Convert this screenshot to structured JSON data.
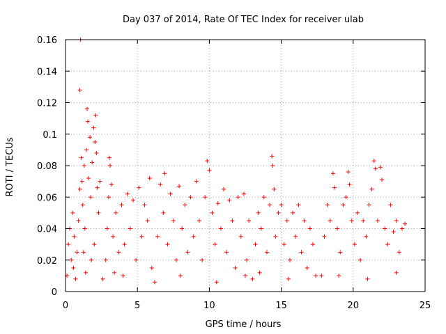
{
  "chart_data": {
    "type": "scatter",
    "title": "Day 037 of 2014, Rate Of TEC Index for receiver ulab",
    "xlabel": "GPS time / hours",
    "ylabel": "ROTI / TECUs",
    "xlim": [
      0,
      25
    ],
    "ylim": [
      0,
      0.16
    ],
    "x_ticks": [
      0,
      5,
      10,
      15,
      20,
      25
    ],
    "x_tick_labels": [
      "0",
      "5",
      "10",
      "15",
      "20",
      "25"
    ],
    "y_ticks": [
      0,
      0.02,
      0.04,
      0.06,
      0.08,
      0.1,
      0.12,
      0.14,
      0.16
    ],
    "y_tick_labels": [
      "0",
      "0.02",
      "0.04",
      "0.06",
      "0.08",
      "0.1",
      "0.12",
      "0.14",
      "0.16"
    ],
    "grid": true,
    "marker": "+",
    "marker_color": "#ff0000",
    "series": [
      {
        "name": "ROTI",
        "points": [
          [
            0.1,
            0.01
          ],
          [
            0.2,
            0.03
          ],
          [
            0.3,
            0.04
          ],
          [
            0.4,
            0.02
          ],
          [
            0.5,
            0.05
          ],
          [
            0.55,
            0.015
          ],
          [
            0.6,
            0.035
          ],
          [
            0.7,
            0.008
          ],
          [
            0.8,
            0.025
          ],
          [
            0.9,
            0.045
          ],
          [
            1.0,
            0.065
          ],
          [
            1.05,
            0.16
          ],
          [
            1.0,
            0.128
          ],
          [
            1.1,
            0.085
          ],
          [
            1.15,
            0.07
          ],
          [
            1.2,
            0.055
          ],
          [
            1.3,
            0.08
          ],
          [
            1.35,
            0.04
          ],
          [
            1.45,
            0.09
          ],
          [
            1.5,
            0.116
          ],
          [
            1.55,
            0.108
          ],
          [
            1.6,
            0.072
          ],
          [
            1.7,
            0.098
          ],
          [
            1.75,
            0.06
          ],
          [
            1.85,
            0.082
          ],
          [
            1.95,
            0.104
          ],
          [
            2.05,
            0.095
          ],
          [
            2.1,
            0.112
          ],
          [
            2.15,
            0.088
          ],
          [
            2.2,
            0.066
          ],
          [
            2.3,
            0.05
          ],
          [
            2.4,
            0.07
          ],
          [
            2.0,
            0.03
          ],
          [
            1.8,
            0.02
          ],
          [
            1.4,
            0.012
          ],
          [
            1.25,
            0.025
          ],
          [
            2.6,
            0.008
          ],
          [
            2.8,
            0.02
          ],
          [
            2.9,
            0.04
          ],
          [
            3.0,
            0.06
          ],
          [
            3.05,
            0.085
          ],
          [
            3.1,
            0.08
          ],
          [
            3.2,
            0.068
          ],
          [
            3.3,
            0.035
          ],
          [
            3.5,
            0.05
          ],
          [
            3.7,
            0.025
          ],
          [
            3.9,
            0.055
          ],
          [
            4.1,
            0.03
          ],
          [
            4.3,
            0.062
          ],
          [
            4.5,
            0.04
          ],
          [
            4.7,
            0.058
          ],
          [
            4.9,
            0.02
          ],
          [
            5.1,
            0.066
          ],
          [
            5.3,
            0.035
          ],
          [
            5.5,
            0.055
          ],
          [
            5.7,
            0.045
          ],
          [
            5.85,
            0.072
          ],
          [
            6.0,
            0.015
          ],
          [
            4.0,
            0.01
          ],
          [
            3.4,
            0.012
          ],
          [
            6.2,
            0.006
          ],
          [
            6.4,
            0.035
          ],
          [
            6.6,
            0.068
          ],
          [
            6.8,
            0.05
          ],
          [
            6.9,
            0.075
          ],
          [
            7.1,
            0.03
          ],
          [
            7.3,
            0.062
          ],
          [
            7.5,
            0.045
          ],
          [
            7.7,
            0.02
          ],
          [
            7.9,
            0.067
          ],
          [
            8.1,
            0.04
          ],
          [
            8.3,
            0.055
          ],
          [
            8.5,
            0.025
          ],
          [
            8.7,
            0.06
          ],
          [
            8.9,
            0.035
          ],
          [
            9.1,
            0.07
          ],
          [
            9.3,
            0.045
          ],
          [
            9.5,
            0.02
          ],
          [
            9.7,
            0.06
          ],
          [
            9.85,
            0.083
          ],
          [
            10.0,
            0.077
          ],
          [
            10.2,
            0.05
          ],
          [
            10.4,
            0.03
          ],
          [
            10.6,
            0.056
          ],
          [
            10.8,
            0.04
          ],
          [
            11.0,
            0.065
          ],
          [
            11.2,
            0.025
          ],
          [
            11.4,
            0.058
          ],
          [
            11.6,
            0.045
          ],
          [
            11.8,
            0.015
          ],
          [
            12.0,
            0.06
          ],
          [
            12.2,
            0.035
          ],
          [
            12.4,
            0.062
          ],
          [
            12.6,
            0.02
          ],
          [
            12.75,
            0.045
          ],
          [
            8.0,
            0.01
          ],
          [
            10.5,
            0.006
          ],
          [
            12.5,
            0.01
          ],
          [
            13.0,
            0.008
          ],
          [
            13.2,
            0.03
          ],
          [
            13.4,
            0.05
          ],
          [
            13.6,
            0.04
          ],
          [
            13.8,
            0.06
          ],
          [
            14.0,
            0.025
          ],
          [
            14.2,
            0.055
          ],
          [
            14.35,
            0.086
          ],
          [
            14.4,
            0.08
          ],
          [
            14.5,
            0.065
          ],
          [
            14.6,
            0.035
          ],
          [
            14.8,
            0.05
          ],
          [
            15.0,
            0.055
          ],
          [
            15.2,
            0.03
          ],
          [
            15.4,
            0.045
          ],
          [
            15.6,
            0.02
          ],
          [
            15.8,
            0.05
          ],
          [
            16.0,
            0.035
          ],
          [
            16.2,
            0.055
          ],
          [
            16.4,
            0.025
          ],
          [
            16.6,
            0.045
          ],
          [
            16.8,
            0.015
          ],
          [
            17.0,
            0.04
          ],
          [
            17.2,
            0.03
          ],
          [
            17.4,
            0.01
          ],
          [
            13.5,
            0.012
          ],
          [
            15.5,
            0.008
          ],
          [
            17.8,
            0.01
          ],
          [
            18.0,
            0.035
          ],
          [
            18.2,
            0.055
          ],
          [
            18.4,
            0.045
          ],
          [
            18.6,
            0.075
          ],
          [
            18.7,
            0.066
          ],
          [
            18.9,
            0.04
          ],
          [
            19.1,
            0.025
          ],
          [
            19.3,
            0.055
          ],
          [
            19.5,
            0.06
          ],
          [
            19.65,
            0.076
          ],
          [
            19.75,
            0.068
          ],
          [
            19.9,
            0.045
          ],
          [
            20.1,
            0.03
          ],
          [
            20.3,
            0.05
          ],
          [
            20.5,
            0.02
          ],
          [
            20.7,
            0.045
          ],
          [
            20.9,
            0.035
          ],
          [
            21.1,
            0.055
          ],
          [
            21.3,
            0.065
          ],
          [
            21.45,
            0.083
          ],
          [
            21.55,
            0.078
          ],
          [
            21.7,
            0.045
          ],
          [
            21.9,
            0.079
          ],
          [
            22.0,
            0.071
          ],
          [
            22.2,
            0.04
          ],
          [
            22.4,
            0.03
          ],
          [
            22.6,
            0.055
          ],
          [
            22.8,
            0.038
          ],
          [
            23.0,
            0.045
          ],
          [
            23.2,
            0.025
          ],
          [
            23.4,
            0.04
          ],
          [
            23.6,
            0.043
          ],
          [
            19.0,
            0.01
          ],
          [
            21.0,
            0.008
          ],
          [
            23.0,
            0.012
          ]
        ]
      }
    ]
  }
}
